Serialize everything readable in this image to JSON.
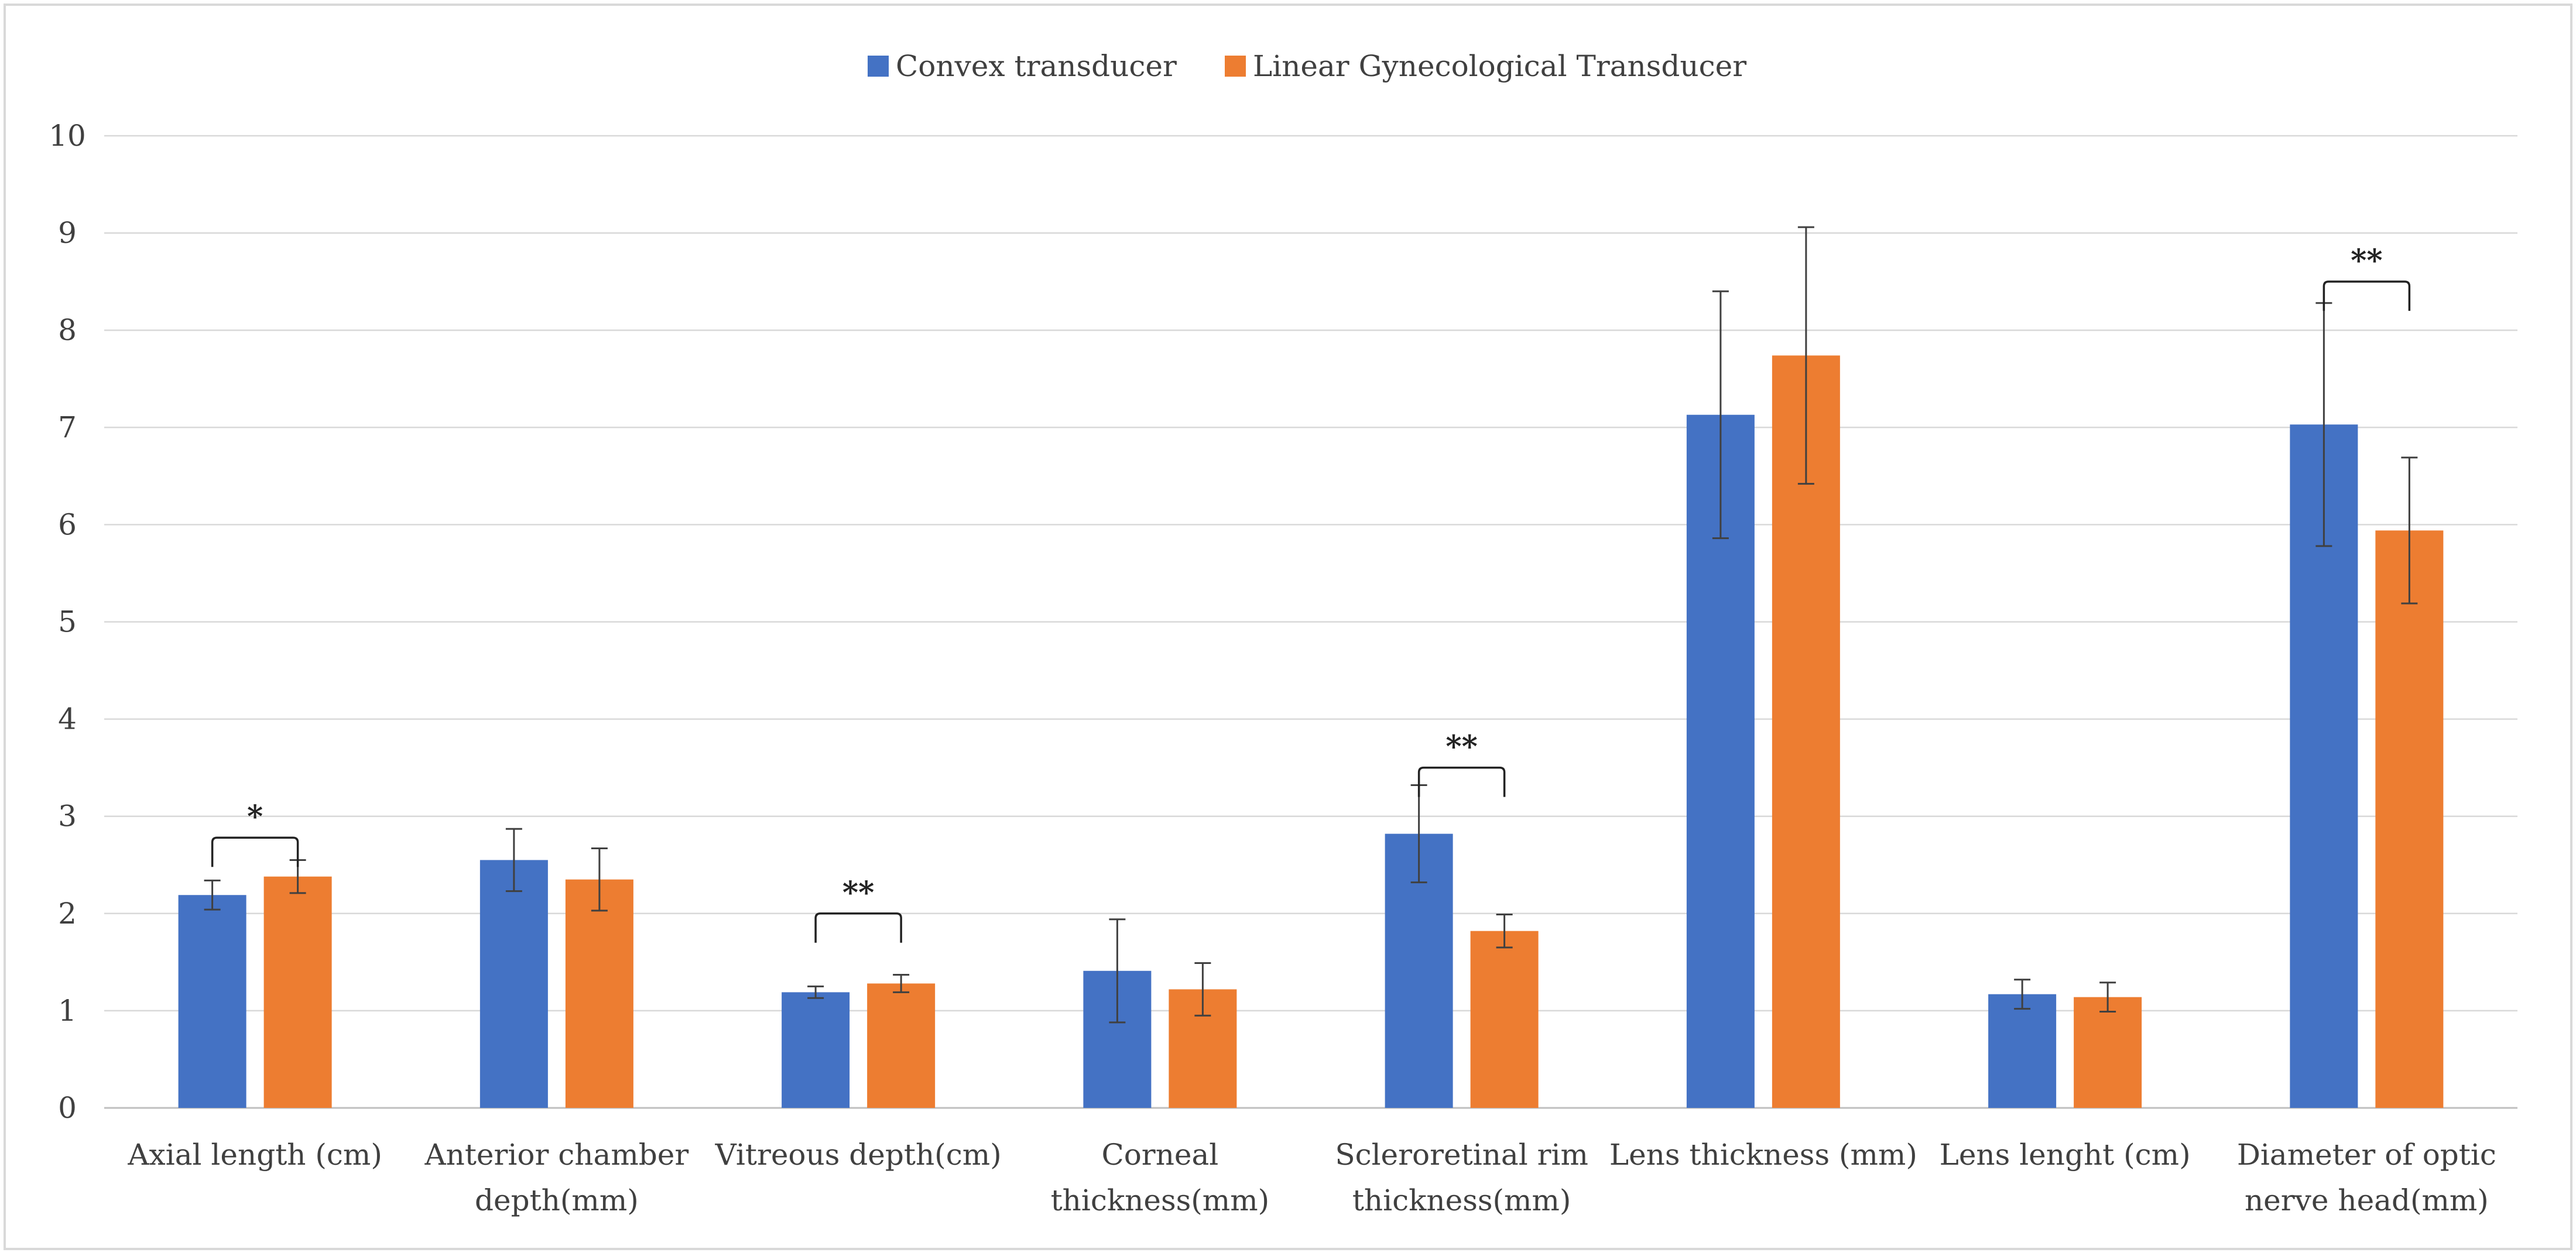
{
  "chart_data": {
    "type": "bar",
    "title": "",
    "xlabel": "",
    "ylabel": "",
    "ylim": [
      0,
      10
    ],
    "yticks": [
      0,
      1,
      2,
      3,
      4,
      5,
      6,
      7,
      8,
      9,
      10
    ],
    "grid": true,
    "legend_position": "top-center",
    "categories": [
      [
        "Axial length (cm)"
      ],
      [
        "Anterior chamber",
        "depth(mm)"
      ],
      [
        "Vitreous depth(cm)"
      ],
      [
        "Corneal",
        "thickness(mm)"
      ],
      [
        "Scleroretinal rim",
        "thickness(mm)"
      ],
      [
        "Lens thickness (mm)"
      ],
      [
        "Lens lenght (cm)"
      ],
      [
        "Diameter of optic",
        "nerve head(mm)"
      ]
    ],
    "series": [
      {
        "name": "Convex transducer",
        "color": "#4472C4",
        "values": [
          2.19,
          2.55,
          1.19,
          1.41,
          2.82,
          7.13,
          1.17,
          7.03
        ],
        "errors": [
          0.15,
          0.32,
          0.06,
          0.53,
          0.5,
          1.27,
          0.15,
          1.25
        ]
      },
      {
        "name": "Linear Gynecological Transducer",
        "color": "#ED7D31",
        "values": [
          2.38,
          2.35,
          1.28,
          1.22,
          1.82,
          7.74,
          1.14,
          5.94
        ],
        "errors": [
          0.17,
          0.32,
          0.09,
          0.27,
          0.17,
          1.32,
          0.15,
          0.75
        ]
      }
    ],
    "significance": [
      {
        "category_index": 0,
        "label": "*",
        "bracket_value": 2.78
      },
      {
        "category_index": 2,
        "label": "**",
        "bracket_value": 2.0
      },
      {
        "category_index": 4,
        "label": "**",
        "bracket_value": 3.5
      },
      {
        "category_index": 7,
        "label": "**",
        "bracket_value": 8.5
      }
    ]
  }
}
